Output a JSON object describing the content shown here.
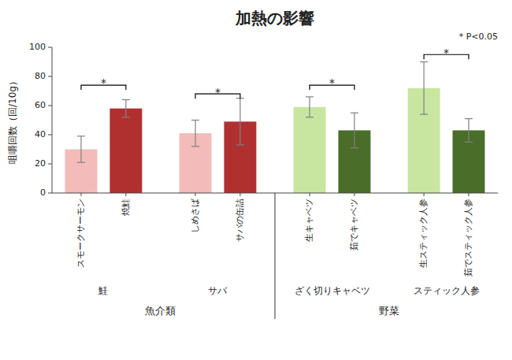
{
  "chart_data": {
    "type": "bar",
    "title": "加熱の影響",
    "ylabel": "咀嚼回数（回/10g）",
    "categories": [
      "スモークサーモン",
      "焼鮭",
      "しめさば",
      "サバの缶詰",
      "生キャベツ",
      "茹でキャベツ",
      "生スティック人参",
      "茹でスティック人参"
    ],
    "values": [
      30,
      58,
      41,
      49,
      59,
      43,
      72,
      43
    ],
    "errors": [
      9,
      6,
      9,
      16,
      7,
      12,
      18,
      8
    ],
    "colors": [
      "#F4BBBB",
      "#B03030",
      "#F4BBBB",
      "#B03030",
      "#C8E6A0",
      "#4A6E2A",
      "#C8E6A0",
      "#4A6E2A"
    ],
    "ylim": [
      0,
      100
    ],
    "yticks": [
      0,
      20,
      40,
      60,
      80,
      100
    ],
    "groups": [
      {
        "label": "鮭",
        "bars": [
          0,
          1
        ]
      },
      {
        "label": "サバ",
        "bars": [
          2,
          3
        ]
      },
      {
        "label": "ざく切りキャベツ",
        "bars": [
          4,
          5
        ]
      },
      {
        "label": "スティック人参",
        "bars": [
          6,
          7
        ]
      }
    ],
    "category_groups": [
      {
        "label": "魚介類",
        "bars": [
          0,
          3
        ]
      },
      {
        "label": "野菜",
        "bars": [
          4,
          7
        ]
      }
    ],
    "brackets": [
      {
        "bar1": 0,
        "bar2": 1,
        "y": 74,
        "star_y": 76,
        "label": "*"
      },
      {
        "bar1": 2,
        "bar2": 3,
        "y": 68,
        "star_y": 70,
        "label": "*"
      },
      {
        "bar1": 4,
        "bar2": 5,
        "y": 74,
        "star_y": 76,
        "label": "*"
      },
      {
        "bar1": 6,
        "bar2": 7,
        "y": 95,
        "star_y": 97,
        "label": "*"
      }
    ],
    "annotation": "* P<0.05"
  }
}
